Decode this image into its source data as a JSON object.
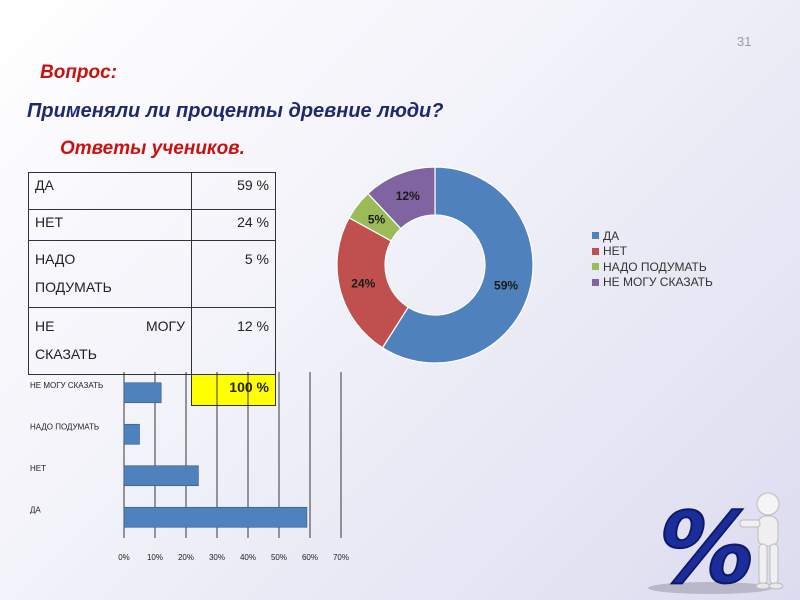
{
  "slide_number": "31",
  "question_label": "Вопрос:",
  "question_text": "Применяли ли проценты древние люди?",
  "answers_label": "Ответы учеников.",
  "table": {
    "rows": [
      {
        "label": "ДА",
        "value": "59 %"
      },
      {
        "label": "НЕТ",
        "value": "24 %"
      },
      {
        "label_lines": [
          "НАДО",
          "ПОДУМАТЬ"
        ],
        "value": "5 %"
      },
      {
        "label_lines": [
          "НЕ МОГУ",
          "СКАЗАТЬ"
        ],
        "value": "12 %"
      }
    ],
    "total": "100 %"
  },
  "colors": {
    "yes": "#4f81bd",
    "no": "#c0504d",
    "think": "#9bbb59",
    "cant_say": "#8064a2",
    "title_red": "#cc1010",
    "title_blue": "#1f2a6e",
    "bar_fill": "#4f81bd",
    "total_highlight": "#ffff00"
  },
  "chart_data": [
    {
      "type": "pie",
      "style": "donut",
      "categories": [
        "ДА",
        "НЕТ",
        "НАДО ПОДУМАТЬ",
        "НЕ МОГУ СКАЗАТЬ"
      ],
      "values": [
        59,
        24,
        5,
        12
      ],
      "data_labels": [
        "59%",
        "24%",
        "5%",
        "12%"
      ],
      "legend_position": "right"
    },
    {
      "type": "bar",
      "orientation": "horizontal",
      "categories": [
        "НЕ МОГУ СКАЗАТЬ",
        "НАДО ПОДУМАТЬ",
        "НЕТ",
        "ДА"
      ],
      "values": [
        12,
        5,
        24,
        59
      ],
      "xlim": [
        0,
        70
      ],
      "x_ticks": [
        "0%",
        "10%",
        "20%",
        "30%",
        "40%",
        "50%",
        "60%",
        "70%"
      ],
      "grid": "vertical"
    }
  ],
  "mascot_text": "%"
}
